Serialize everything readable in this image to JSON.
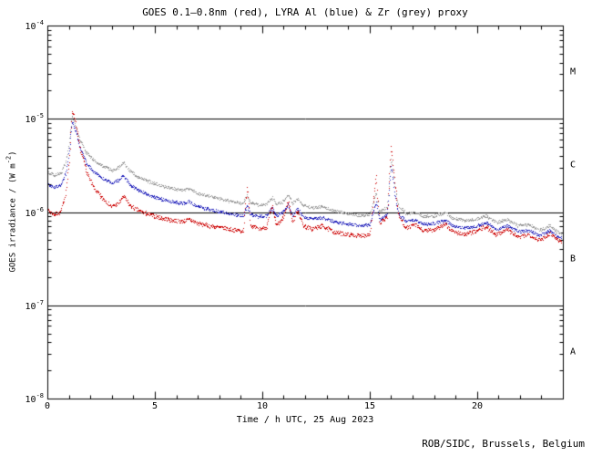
{
  "chart_data": {
    "type": "line",
    "title": "GOES 0.1–0.8nm (red), LYRA Al (blue) & Zr (grey) proxy",
    "xlabel": "Time / h UTC, 25 Aug 2023",
    "ylabel_parts": {
      "pre": "GOES irradiance / (W m",
      "sup": "-2",
      "post": ")"
    },
    "credit": "ROB/SIDC, Brussels, Belgium",
    "x_range": [
      0,
      24
    ],
    "y_range_exp": [
      -8,
      -4
    ],
    "y_scale": "log",
    "grid": false,
    "x_ticks": [
      {
        "value": 0,
        "label": "0"
      },
      {
        "value": 5,
        "label": "5"
      },
      {
        "value": 10,
        "label": "10"
      },
      {
        "value": 15,
        "label": "15"
      },
      {
        "value": 20,
        "label": "20"
      }
    ],
    "y_ticks": [
      {
        "exp": -4,
        "base": "10",
        "sup": "-4"
      },
      {
        "exp": -5,
        "base": "10",
        "sup": "-5"
      },
      {
        "exp": -6,
        "base": "10",
        "sup": "-6"
      },
      {
        "exp": -7,
        "base": "10",
        "sup": "-7"
      },
      {
        "exp": -8,
        "base": "10",
        "sup": "-8"
      }
    ],
    "class_lines": [
      1e-05,
      1e-06,
      1e-07
    ],
    "class_labels": [
      {
        "label": "M",
        "value": 3.16e-05
      },
      {
        "label": "C",
        "value": 3.16e-06
      },
      {
        "label": "B",
        "value": 3.16e-07
      },
      {
        "label": "A",
        "value": 3.16e-08
      }
    ],
    "series": [
      {
        "name": "GOES 0.1-0.8nm",
        "color": "#cc0000",
        "points": [
          [
            0,
            1.05e-06
          ],
          [
            0.3,
            9.5e-07
          ],
          [
            0.6,
            1e-06
          ],
          [
            0.85,
            1.6e-06
          ],
          [
            1.0,
            3.5e-06
          ],
          [
            1.15,
            1.25e-05
          ],
          [
            1.3,
            9e-06
          ],
          [
            1.5,
            5e-06
          ],
          [
            1.8,
            2.8e-06
          ],
          [
            2.1,
            1.9e-06
          ],
          [
            2.5,
            1.45e-06
          ],
          [
            3.0,
            1.15e-06
          ],
          [
            3.3,
            1.25e-06
          ],
          [
            3.55,
            1.5e-06
          ],
          [
            3.8,
            1.2e-06
          ],
          [
            4.2,
            1.05e-06
          ],
          [
            4.7,
            9.5e-07
          ],
          [
            5.2,
            8.8e-07
          ],
          [
            5.8,
            8.2e-07
          ],
          [
            6.3,
            8e-07
          ],
          [
            6.6,
            8.4e-07
          ],
          [
            7.0,
            7.6e-07
          ],
          [
            7.5,
            7.2e-07
          ],
          [
            8.0,
            6.9e-07
          ],
          [
            8.6,
            6.5e-07
          ],
          [
            9.1,
            6.3e-07
          ],
          [
            9.3,
            1.9e-06
          ],
          [
            9.45,
            7.2e-07
          ],
          [
            9.8,
            6.6e-07
          ],
          [
            10.2,
            7e-07
          ],
          [
            10.45,
            1.15e-06
          ],
          [
            10.65,
            7.2e-07
          ],
          [
            10.95,
            8.5e-07
          ],
          [
            11.2,
            1.3e-06
          ],
          [
            11.4,
            8e-07
          ],
          [
            11.65,
            1.05e-06
          ],
          [
            11.9,
            7.2e-07
          ],
          [
            12.3,
            6.6e-07
          ],
          [
            12.8,
            7.2e-07
          ],
          [
            13.3,
            6.2e-07
          ],
          [
            13.9,
            5.8e-07
          ],
          [
            14.5,
            5.6e-07
          ],
          [
            15.0,
            5.8e-07
          ],
          [
            15.3,
            2.4e-06
          ],
          [
            15.45,
            7.5e-07
          ],
          [
            15.8,
            9e-07
          ],
          [
            16.0,
            5.2e-06
          ],
          [
            16.15,
            2.2e-06
          ],
          [
            16.35,
            9e-07
          ],
          [
            16.7,
            6.8e-07
          ],
          [
            17.1,
            7.4e-07
          ],
          [
            17.5,
            6.3e-07
          ],
          [
            18.0,
            6.6e-07
          ],
          [
            18.5,
            7.4e-07
          ],
          [
            18.9,
            6.2e-07
          ],
          [
            19.4,
            5.8e-07
          ],
          [
            19.9,
            6.2e-07
          ],
          [
            20.4,
            7e-07
          ],
          [
            20.9,
            5.8e-07
          ],
          [
            21.4,
            6.6e-07
          ],
          [
            21.9,
            5.4e-07
          ],
          [
            22.4,
            5.8e-07
          ],
          [
            22.9,
            5e-07
          ],
          [
            23.4,
            6e-07
          ],
          [
            23.7,
            5.2e-07
          ],
          [
            24,
            4.7e-07
          ]
        ]
      },
      {
        "name": "LYRA Al",
        "color": "#2222bb",
        "points": [
          [
            0,
            2e-06
          ],
          [
            0.3,
            1.85e-06
          ],
          [
            0.6,
            1.95e-06
          ],
          [
            0.85,
            2.6e-06
          ],
          [
            1.0,
            4.5e-06
          ],
          [
            1.15,
            9.5e-06
          ],
          [
            1.3,
            7.5e-06
          ],
          [
            1.5,
            5e-06
          ],
          [
            1.8,
            3.4e-06
          ],
          [
            2.1,
            2.8e-06
          ],
          [
            2.5,
            2.35e-06
          ],
          [
            3.0,
            2.05e-06
          ],
          [
            3.3,
            2.2e-06
          ],
          [
            3.55,
            2.5e-06
          ],
          [
            3.8,
            2e-06
          ],
          [
            4.2,
            1.75e-06
          ],
          [
            4.7,
            1.55e-06
          ],
          [
            5.2,
            1.4e-06
          ],
          [
            5.8,
            1.3e-06
          ],
          [
            6.3,
            1.25e-06
          ],
          [
            6.6,
            1.3e-06
          ],
          [
            7.0,
            1.15e-06
          ],
          [
            7.5,
            1.08e-06
          ],
          [
            8.0,
            1.02e-06
          ],
          [
            8.6,
            9.6e-07
          ],
          [
            9.1,
            9.2e-07
          ],
          [
            9.3,
            1.15e-06
          ],
          [
            9.45,
            9.4e-07
          ],
          [
            9.8,
            9e-07
          ],
          [
            10.2,
            9.2e-07
          ],
          [
            10.45,
            1.1e-06
          ],
          [
            10.65,
            9.2e-07
          ],
          [
            10.95,
            1e-06
          ],
          [
            11.2,
            1.2e-06
          ],
          [
            11.4,
            9.4e-07
          ],
          [
            11.65,
            1.08e-06
          ],
          [
            11.9,
            9e-07
          ],
          [
            12.3,
            8.5e-07
          ],
          [
            12.8,
            8.8e-07
          ],
          [
            13.3,
            8e-07
          ],
          [
            13.9,
            7.6e-07
          ],
          [
            14.5,
            7.2e-07
          ],
          [
            15.0,
            7.4e-07
          ],
          [
            15.3,
            1.3e-06
          ],
          [
            15.45,
            8.2e-07
          ],
          [
            15.8,
            9.5e-07
          ],
          [
            16.0,
            3.2e-06
          ],
          [
            16.15,
            1.6e-06
          ],
          [
            16.35,
            9.5e-07
          ],
          [
            16.7,
            8e-07
          ],
          [
            17.1,
            8.4e-07
          ],
          [
            17.5,
            7.4e-07
          ],
          [
            18.0,
            7.6e-07
          ],
          [
            18.5,
            8.2e-07
          ],
          [
            18.9,
            7.2e-07
          ],
          [
            19.4,
            6.8e-07
          ],
          [
            19.9,
            7e-07
          ],
          [
            20.4,
            7.8e-07
          ],
          [
            20.9,
            6.6e-07
          ],
          [
            21.4,
            7.2e-07
          ],
          [
            21.9,
            6.2e-07
          ],
          [
            22.4,
            6.4e-07
          ],
          [
            22.9,
            5.6e-07
          ],
          [
            23.4,
            6.4e-07
          ],
          [
            23.7,
            5.6e-07
          ],
          [
            24,
            5.2e-07
          ]
        ]
      },
      {
        "name": "LYRA Zr proxy",
        "color": "#999999",
        "points": [
          [
            0,
            2.7e-06
          ],
          [
            0.3,
            2.5e-06
          ],
          [
            0.6,
            2.6e-06
          ],
          [
            0.85,
            3.4e-06
          ],
          [
            1.0,
            5.5e-06
          ],
          [
            1.15,
            1.05e-05
          ],
          [
            1.3,
            8.5e-06
          ],
          [
            1.5,
            6e-06
          ],
          [
            1.8,
            4.4e-06
          ],
          [
            2.1,
            3.7e-06
          ],
          [
            2.5,
            3.2e-06
          ],
          [
            3.0,
            2.8e-06
          ],
          [
            3.3,
            3e-06
          ],
          [
            3.55,
            3.4e-06
          ],
          [
            3.8,
            2.8e-06
          ],
          [
            4.2,
            2.4e-06
          ],
          [
            4.7,
            2.15e-06
          ],
          [
            5.2,
            1.95e-06
          ],
          [
            5.8,
            1.8e-06
          ],
          [
            6.3,
            1.72e-06
          ],
          [
            6.6,
            1.8e-06
          ],
          [
            7.0,
            1.6e-06
          ],
          [
            7.5,
            1.5e-06
          ],
          [
            8.0,
            1.4e-06
          ],
          [
            8.6,
            1.3e-06
          ],
          [
            9.1,
            1.25e-06
          ],
          [
            9.3,
            1.5e-06
          ],
          [
            9.45,
            1.27e-06
          ],
          [
            9.8,
            1.2e-06
          ],
          [
            10.2,
            1.22e-06
          ],
          [
            10.45,
            1.45e-06
          ],
          [
            10.65,
            1.22e-06
          ],
          [
            10.95,
            1.3e-06
          ],
          [
            11.2,
            1.55e-06
          ],
          [
            11.4,
            1.25e-06
          ],
          [
            11.65,
            1.4e-06
          ],
          [
            11.9,
            1.18e-06
          ],
          [
            12.3,
            1.12e-06
          ],
          [
            12.8,
            1.15e-06
          ],
          [
            13.3,
            1.05e-06
          ],
          [
            13.9,
            9.8e-07
          ],
          [
            14.5,
            9.2e-07
          ],
          [
            15.0,
            9.4e-07
          ],
          [
            15.3,
            1.6e-06
          ],
          [
            15.45,
            1e-06
          ],
          [
            15.8,
            1.15e-06
          ],
          [
            16.0,
            3.8e-06
          ],
          [
            16.15,
            2e-06
          ],
          [
            16.35,
            1.15e-06
          ],
          [
            16.7,
            9.8e-07
          ],
          [
            17.1,
            1e-06
          ],
          [
            17.5,
            9e-07
          ],
          [
            18.0,
            9.2e-07
          ],
          [
            18.5,
            9.8e-07
          ],
          [
            18.9,
            8.6e-07
          ],
          [
            19.4,
            8.2e-07
          ],
          [
            19.9,
            8.4e-07
          ],
          [
            20.4,
            9.2e-07
          ],
          [
            20.9,
            7.8e-07
          ],
          [
            21.4,
            8.4e-07
          ],
          [
            21.9,
            7.2e-07
          ],
          [
            22.4,
            7.4e-07
          ],
          [
            22.9,
            6.4e-07
          ],
          [
            23.4,
            7.2e-07
          ],
          [
            23.7,
            6.2e-07
          ],
          [
            24,
            5.8e-07
          ]
        ]
      }
    ]
  }
}
